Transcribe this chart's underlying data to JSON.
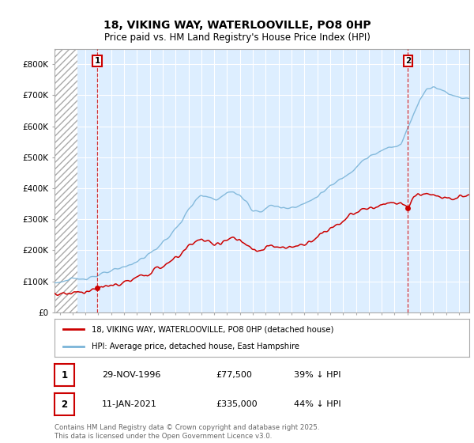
{
  "title1": "18, VIKING WAY, WATERLOOVILLE, PO8 0HP",
  "title2": "Price paid vs. HM Land Registry's House Price Index (HPI)",
  "ylim": [
    0,
    850000
  ],
  "yticks": [
    0,
    100000,
    200000,
    300000,
    400000,
    500000,
    600000,
    700000,
    800000
  ],
  "ytick_labels": [
    "£0",
    "£100K",
    "£200K",
    "£300K",
    "£400K",
    "£500K",
    "£600K",
    "£700K",
    "£800K"
  ],
  "xlim_start": 1993.6,
  "xlim_end": 2025.8,
  "hatch_end": 1995.4,
  "legend1": "18, VIKING WAY, WATERLOOVILLE, PO8 0HP (detached house)",
  "legend2": "HPI: Average price, detached house, East Hampshire",
  "marker1_x": 1996.92,
  "marker1_y": 77500,
  "marker2_x": 2021.04,
  "marker2_y": 335000,
  "table_row1": [
    "1",
    "29-NOV-1996",
    "£77,500",
    "39% ↓ HPI"
  ],
  "table_row2": [
    "2",
    "11-JAN-2021",
    "£335,000",
    "44% ↓ HPI"
  ],
  "footnote": "Contains HM Land Registry data © Crown copyright and database right 2025.\nThis data is licensed under the Open Government Licence v3.0.",
  "hpi_color": "#7ab4d8",
  "price_color": "#cc0000",
  "plot_bg": "#ddeeff",
  "bg_color": "#ffffff",
  "grid_color": "#ffffff",
  "annotation_box_color": "#cc0000"
}
